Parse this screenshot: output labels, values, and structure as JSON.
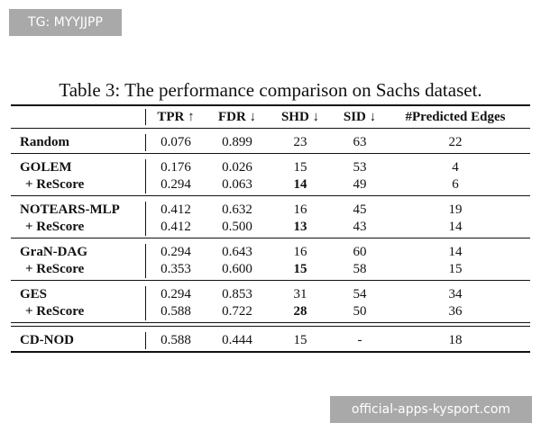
{
  "watermarks": [
    "TG: MYYJJPP",
    "official-apps-kysport.com"
  ],
  "table": {
    "caption": "Table 3: The performance comparison on Sachs dataset.",
    "header": [
      "TPR ↑",
      "FDR ↓",
      "SHD ↓",
      "SID ↓",
      "#Predicted Edges"
    ],
    "groups": [
      {
        "rows": [
          {
            "method": "Random",
            "cells": [
              "0.076",
              "0.899",
              "23",
              "63",
              "22"
            ]
          }
        ]
      },
      {
        "rows": [
          {
            "method": "GOLEM",
            "cells": [
              "0.176",
              "0.026",
              "15",
              "53",
              "4"
            ]
          },
          {
            "method": "+ ReScore",
            "cells": [
              "0.294",
              "0.063",
              "14",
              "49",
              "6"
            ],
            "bold": [
              2
            ]
          }
        ]
      },
      {
        "rows": [
          {
            "method": "NOTEARS-MLP",
            "cells": [
              "0.412",
              "0.632",
              "16",
              "45",
              "19"
            ]
          },
          {
            "method": "+ ReScore",
            "cells": [
              "0.412",
              "0.500",
              "13",
              "43",
              "14"
            ],
            "bold": [
              2
            ]
          }
        ]
      },
      {
        "rows": [
          {
            "method": "GraN-DAG",
            "cells": [
              "0.294",
              "0.643",
              "16",
              "60",
              "14"
            ]
          },
          {
            "method": "+ ReScore",
            "cells": [
              "0.353",
              "0.600",
              "15",
              "58",
              "15"
            ],
            "bold": [
              2
            ]
          }
        ]
      },
      {
        "rows": [
          {
            "method": "GES",
            "cells": [
              "0.294",
              "0.853",
              "31",
              "54",
              "34"
            ]
          },
          {
            "method": "+ ReScore",
            "cells": [
              "0.588",
              "0.722",
              "28",
              "50",
              "36"
            ],
            "bold": [
              2
            ]
          }
        ]
      },
      {
        "rows": [
          {
            "method": "CD-NOD",
            "cells": [
              "0.588",
              "0.444",
              "15",
              "-",
              "18"
            ]
          }
        ]
      }
    ]
  }
}
